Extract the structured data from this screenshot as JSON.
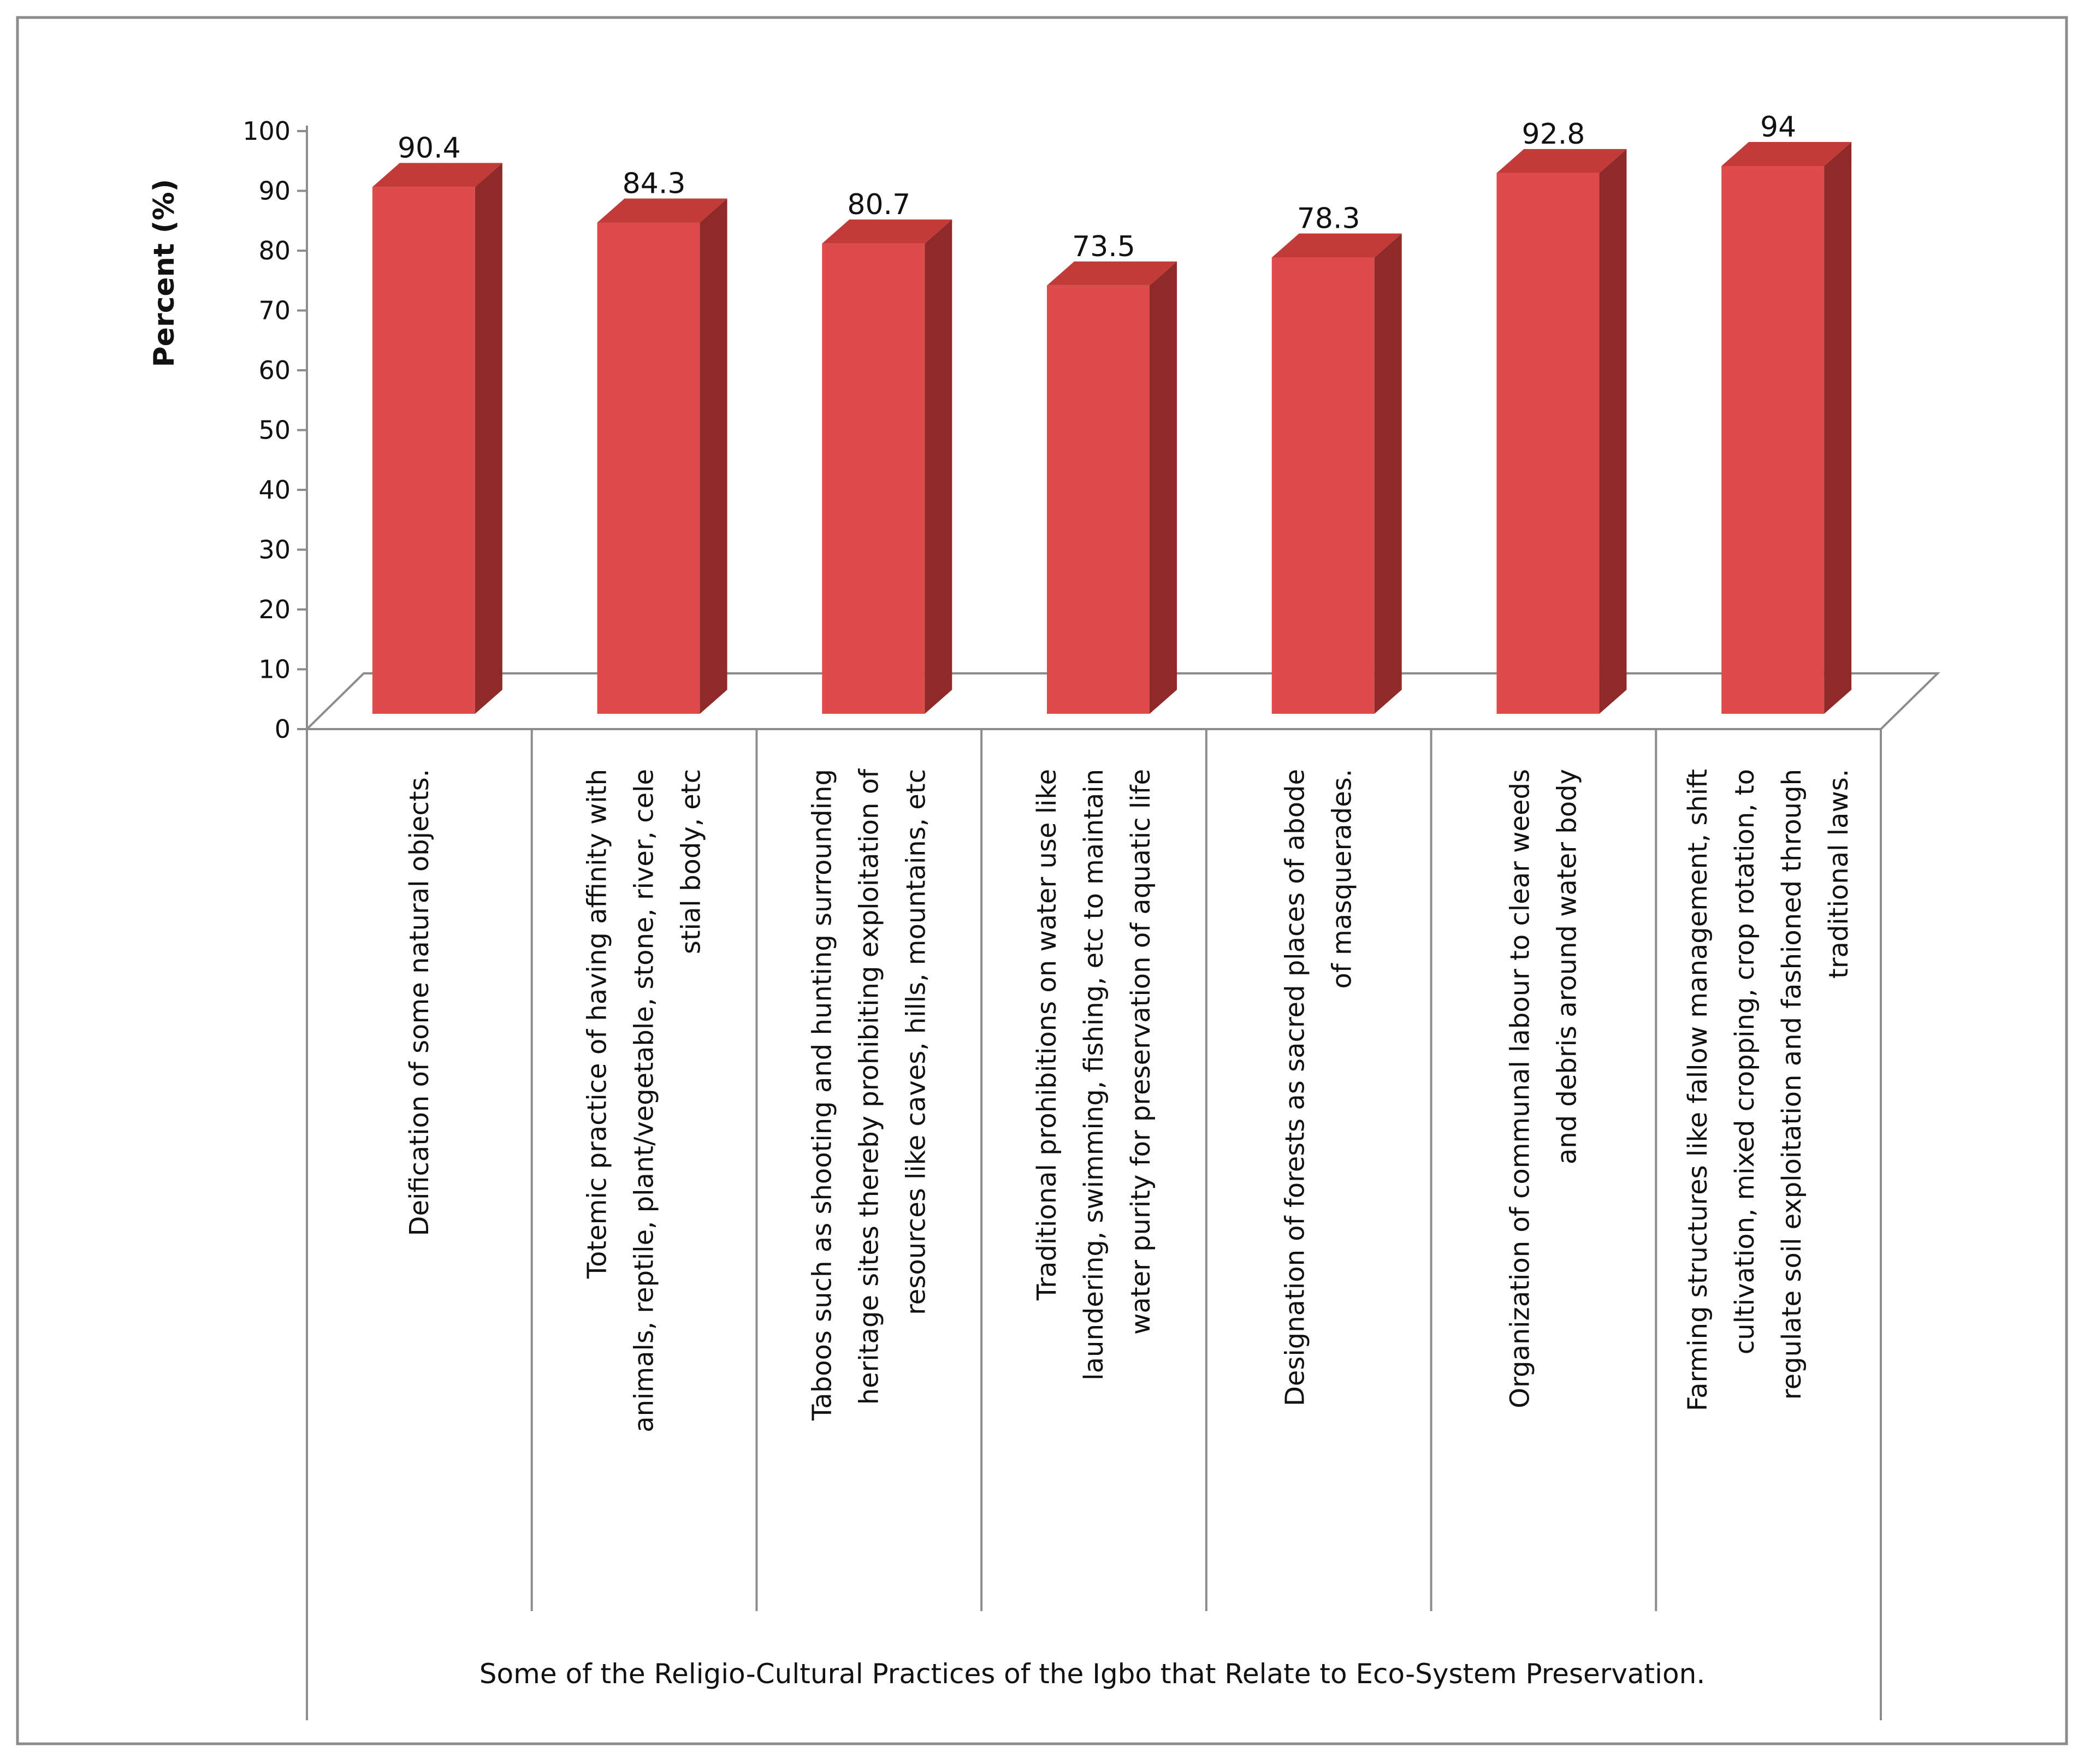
{
  "chart_data": {
    "type": "bar",
    "style": "3d-column",
    "title": "",
    "ylabel": "Percent (%)",
    "xlabel": "Some of the Religio-Cultural Practices of the Igbo that Relate to Eco-System Preservation.",
    "ylim": [
      0,
      100
    ],
    "yticks": [
      0,
      10,
      20,
      30,
      40,
      50,
      60,
      70,
      80,
      90,
      100
    ],
    "grid": false,
    "legend": "none",
    "bar_color": "#dd4c4a",
    "bar_side_color": "#8e2a28",
    "bar_top_color": "#c23b38",
    "categories": [
      {
        "label": "Deification of some natural objects.",
        "lines": [
          "Deification of some natural objects."
        ]
      },
      {
        "label": "Totemic practice of having affinity with animals, reptile, plant/vegetable, stone, river, cele stial body, etc",
        "lines": [
          "Totemic practice of having affinity with",
          "animals, reptile, plant/vegetable, stone, river, cele",
          "stial body, etc"
        ]
      },
      {
        "label": "Taboos such as shooting and hunting surrounding heritage sites thereby prohibiting exploitation of resources like caves, hills, mountains, etc",
        "lines": [
          "Taboos such as shooting and hunting surrounding",
          "heritage sites thereby prohibiting exploitation of",
          "resources like caves, hills, mountains, etc"
        ]
      },
      {
        "label": "Traditional prohibitions on water use like laundering, swimming, fishing, etc to maintain water purity for preservation of aquatic life",
        "lines": [
          "Traditional prohibitions on water use like",
          "laundering, swimming, fishing, etc to maintain",
          "water purity for preservation of aquatic life"
        ]
      },
      {
        "label": "Designation of forests as sacred places of abode of masquerades.",
        "lines": [
          "Designation of forests as sacred places of abode",
          "of masquerades."
        ]
      },
      {
        "label": "Organization of communal labour to clear weeds and debris around water body",
        "lines": [
          "Organization of communal labour to clear weeds",
          "and debris around water body"
        ]
      },
      {
        "label": "Farming structures like fallow management, shift cultivation, mixed cropping, crop rotation, to regulate soil exploitation and fashioned through traditional laws.",
        "lines": [
          "Farming structures like fallow management, shift",
          "cultivation, mixed cropping, crop rotation, to",
          "regulate soil exploitation and fashioned through",
          "traditional laws."
        ]
      }
    ],
    "values": [
      90.4,
      84.3,
      80.7,
      73.5,
      78.3,
      92.8,
      94
    ],
    "value_labels": [
      "90.4",
      "84.3",
      "80.7",
      "73.5",
      "78.3",
      "92.8",
      "94"
    ]
  }
}
